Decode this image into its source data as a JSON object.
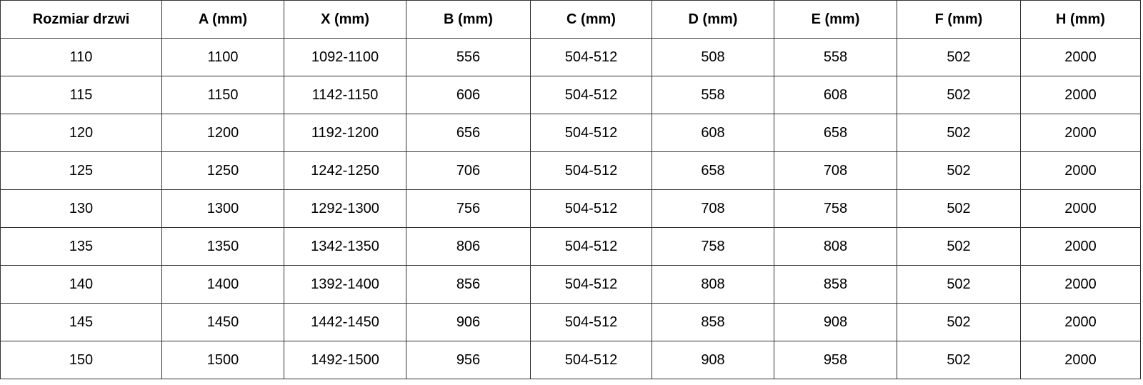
{
  "table": {
    "headers": [
      "Rozmiar drzwi",
      "A (mm)",
      "X (mm)",
      "B (mm)",
      "C (mm)",
      "D (mm)",
      "E (mm)",
      "F (mm)",
      "H (mm)"
    ],
    "rows": [
      [
        "110",
        "1100",
        "1092-1100",
        "556",
        "504-512",
        "508",
        "558",
        "502",
        "2000"
      ],
      [
        "115",
        "1150",
        "1142-1150",
        "606",
        "504-512",
        "558",
        "608",
        "502",
        "2000"
      ],
      [
        "120",
        "1200",
        "1192-1200",
        "656",
        "504-512",
        "608",
        "658",
        "502",
        "2000"
      ],
      [
        "125",
        "1250",
        "1242-1250",
        "706",
        "504-512",
        "658",
        "708",
        "502",
        "2000"
      ],
      [
        "130",
        "1300",
        "1292-1300",
        "756",
        "504-512",
        "708",
        "758",
        "502",
        "2000"
      ],
      [
        "135",
        "1350",
        "1342-1350",
        "806",
        "504-512",
        "758",
        "808",
        "502",
        "2000"
      ],
      [
        "140",
        "1400",
        "1392-1400",
        "856",
        "504-512",
        "808",
        "858",
        "502",
        "2000"
      ],
      [
        "145",
        "1450",
        "1442-1450",
        "906",
        "504-512",
        "858",
        "908",
        "502",
        "2000"
      ],
      [
        "150",
        "1500",
        "1492-1500",
        "956",
        "504-512",
        "908",
        "958",
        "502",
        "2000"
      ]
    ]
  }
}
